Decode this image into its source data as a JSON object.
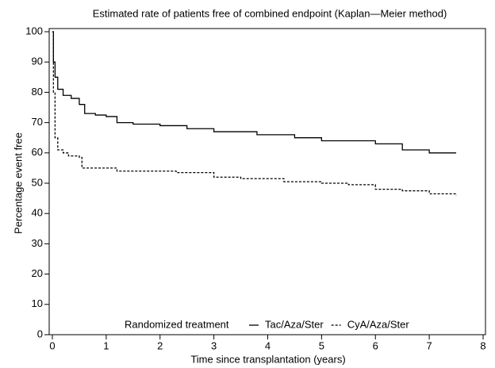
{
  "chart_data": {
    "type": "step",
    "title": "Estimated rate of patients free of combined endpoint (Kaplan—Meier method)",
    "x_label": "Time since transplantation (years)",
    "y_label": "Percentage event free",
    "legend_title": "Randomized treatment",
    "xlim": [
      0,
      8
    ],
    "xticks": [
      0,
      1,
      2,
      3,
      4,
      5,
      6,
      7,
      8
    ],
    "ylim": [
      0,
      100
    ],
    "yticks": [
      0,
      10,
      20,
      30,
      40,
      50,
      60,
      70,
      80,
      90,
      100
    ],
    "series": [
      {
        "name": "Tac/Aza/Ster",
        "color": "#000000",
        "style": "solid",
        "x": [
          0,
          0.02,
          0.05,
          0.1,
          0.2,
          0.35,
          0.5,
          0.6,
          0.8,
          1.0,
          1.2,
          1.5,
          2.0,
          2.5,
          3.0,
          3.8,
          4.5,
          5.0,
          6.0,
          6.5,
          7.0,
          7.5
        ],
        "values": [
          100,
          90,
          85,
          81,
          79,
          78,
          76,
          73,
          72.5,
          72,
          70,
          69.5,
          69,
          68,
          67,
          66,
          65,
          64,
          63,
          61,
          60,
          60
        ]
      },
      {
        "name": "CyA/Aza/Ster",
        "color": "#000000",
        "style": "dashed",
        "x": [
          0,
          0.02,
          0.05,
          0.1,
          0.2,
          0.3,
          0.5,
          0.55,
          1.0,
          1.2,
          2.3,
          3.0,
          3.5,
          4.3,
          5.0,
          5.5,
          6.0,
          6.5,
          7.0,
          7.5
        ],
        "values": [
          100,
          80,
          65,
          61,
          60,
          59,
          58.5,
          55,
          55,
          54,
          53.5,
          52,
          51.5,
          50.5,
          50,
          49.5,
          48,
          47.5,
          46.5,
          46
        ]
      }
    ]
  }
}
